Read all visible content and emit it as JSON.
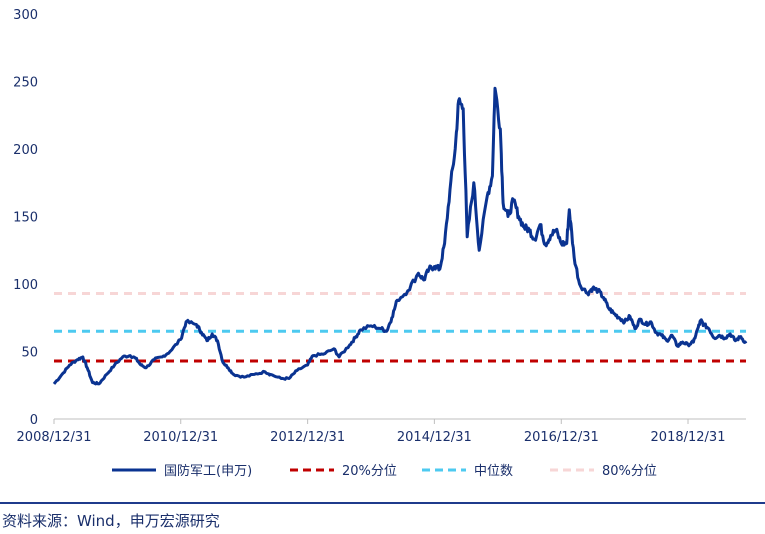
{
  "chart_data": {
    "type": "line",
    "x_range": [
      "2008-12-31",
      "2019-11-30"
    ],
    "ylim": [
      0,
      300
    ],
    "y_ticks": [
      "0",
      "50",
      "100",
      "150",
      "200",
      "250",
      "300"
    ],
    "x_ticks": [
      "2008/12/31",
      "2010/12/31",
      "2012/12/31",
      "2014/12/31",
      "2016/12/31",
      "2018/12/31"
    ],
    "grid": false,
    "legend_position": "bottom",
    "series": [
      {
        "name": "国防军工(申万)",
        "color": "#0a3391",
        "style": "solid",
        "points": [
          [
            "2008-12-31",
            26
          ],
          [
            "2009-02-15",
            33
          ],
          [
            "2009-03-31",
            40
          ],
          [
            "2009-05-15",
            44
          ],
          [
            "2009-06-15",
            46
          ],
          [
            "2009-07-10",
            38
          ],
          [
            "2009-08-10",
            27
          ],
          [
            "2009-09-15",
            26
          ],
          [
            "2009-10-30",
            33
          ],
          [
            "2009-12-15",
            40
          ],
          [
            "2010-01-31",
            46
          ],
          [
            "2010-03-15",
            47
          ],
          [
            "2010-04-15",
            45
          ],
          [
            "2010-05-15",
            40
          ],
          [
            "2010-06-15",
            38
          ],
          [
            "2010-07-31",
            44
          ],
          [
            "2010-09-15",
            46
          ],
          [
            "2010-10-30",
            50
          ],
          [
            "2010-12-31",
            59
          ],
          [
            "2011-01-31",
            72
          ],
          [
            "2011-03-31",
            70
          ],
          [
            "2011-04-30",
            64
          ],
          [
            "2011-05-31",
            58
          ],
          [
            "2011-06-30",
            63
          ],
          [
            "2011-07-31",
            58
          ],
          [
            "2011-08-31",
            42
          ],
          [
            "2011-09-30",
            38
          ],
          [
            "2011-10-31",
            33
          ],
          [
            "2011-12-31",
            31
          ],
          [
            "2012-02-28",
            33
          ],
          [
            "2012-04-30",
            35
          ],
          [
            "2012-05-31",
            33
          ],
          [
            "2012-07-31",
            30
          ],
          [
            "2012-09-15",
            30
          ],
          [
            "2012-10-31",
            36
          ],
          [
            "2012-12-31",
            40
          ],
          [
            "2013-01-31",
            47
          ],
          [
            "2013-03-31",
            48
          ],
          [
            "2013-05-31",
            52
          ],
          [
            "2013-06-30",
            46
          ],
          [
            "2013-08-31",
            55
          ],
          [
            "2013-09-30",
            60
          ],
          [
            "2013-10-31",
            66
          ],
          [
            "2013-12-31",
            69
          ],
          [
            "2014-02-28",
            67
          ],
          [
            "2014-03-31",
            65
          ],
          [
            "2014-04-30",
            75
          ],
          [
            "2014-05-31",
            88
          ],
          [
            "2014-07-31",
            95
          ],
          [
            "2014-09-30",
            108
          ],
          [
            "2014-10-31",
            103
          ],
          [
            "2014-11-30",
            111
          ],
          [
            "2014-12-31",
            113
          ],
          [
            "2015-01-31",
            111
          ],
          [
            "2015-02-28",
            130
          ],
          [
            "2015-03-31",
            170
          ],
          [
            "2015-04-30",
            200
          ],
          [
            "2015-05-20",
            236
          ],
          [
            "2015-06-15",
            230
          ],
          [
            "2015-07-08",
            135
          ],
          [
            "2015-08-15",
            175
          ],
          [
            "2015-09-15",
            125
          ],
          [
            "2015-10-31",
            165
          ],
          [
            "2015-11-30",
            180
          ],
          [
            "2015-12-15",
            245
          ],
          [
            "2016-01-15",
            215
          ],
          [
            "2016-01-31",
            160
          ],
          [
            "2016-02-28",
            150
          ],
          [
            "2016-03-31",
            162
          ],
          [
            "2016-04-30",
            150
          ],
          [
            "2016-05-31",
            142
          ],
          [
            "2016-06-30",
            140
          ],
          [
            "2016-07-31",
            133
          ],
          [
            "2016-08-31",
            144
          ],
          [
            "2016-09-30",
            129
          ],
          [
            "2016-10-31",
            136
          ],
          [
            "2016-11-30",
            140
          ],
          [
            "2016-12-31",
            130
          ],
          [
            "2017-01-31",
            130
          ],
          [
            "2017-02-15",
            155
          ],
          [
            "2017-03-15",
            120
          ],
          [
            "2017-04-15",
            100
          ],
          [
            "2017-05-31",
            93
          ],
          [
            "2017-06-30",
            97
          ],
          [
            "2017-07-31",
            95
          ],
          [
            "2017-08-31",
            90
          ],
          [
            "2017-09-30",
            82
          ],
          [
            "2017-10-31",
            78
          ],
          [
            "2017-11-30",
            75
          ],
          [
            "2017-12-31",
            72
          ],
          [
            "2018-01-31",
            76
          ],
          [
            "2018-02-28",
            67
          ],
          [
            "2018-03-31",
            74
          ],
          [
            "2018-04-30",
            70
          ],
          [
            "2018-05-31",
            72
          ],
          [
            "2018-06-30",
            64
          ],
          [
            "2018-07-31",
            62
          ],
          [
            "2018-08-31",
            58
          ],
          [
            "2018-09-30",
            62
          ],
          [
            "2018-10-31",
            54
          ],
          [
            "2018-11-30",
            57
          ],
          [
            "2018-12-31",
            55
          ],
          [
            "2019-01-31",
            57
          ],
          [
            "2019-02-28",
            68
          ],
          [
            "2019-03-15",
            73
          ],
          [
            "2019-03-31",
            70
          ],
          [
            "2019-04-30",
            67
          ],
          [
            "2019-05-31",
            60
          ],
          [
            "2019-06-30",
            62
          ],
          [
            "2019-07-31",
            60
          ],
          [
            "2019-08-31",
            63
          ],
          [
            "2019-09-30",
            58
          ],
          [
            "2019-10-31",
            61
          ],
          [
            "2019-11-30",
            56
          ]
        ]
      },
      {
        "name": "20%分位",
        "color": "#c00000",
        "style": "dashed",
        "value": 43
      },
      {
        "name": "中位数",
        "color": "#4dcaf0",
        "style": "dashed",
        "value": 65
      },
      {
        "name": "80%分位",
        "color": "#f7d6d6",
        "style": "dashed",
        "value": 93
      }
    ]
  },
  "source": "资料来源：Wind，申万宏源研究"
}
